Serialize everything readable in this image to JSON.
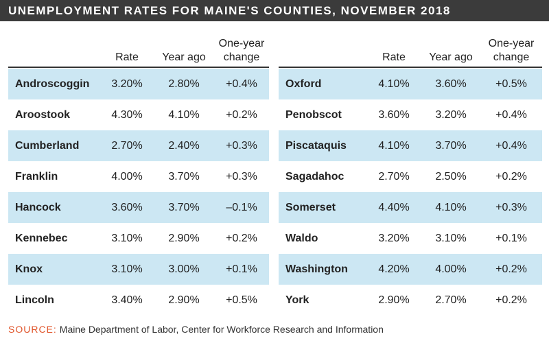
{
  "title": "UNEMPLOYMENT RATES FOR MAINE'S COUNTIES, NOVEMBER 2018",
  "tables": [
    {
      "columns": [
        "Rate",
        "Year ago",
        "One-year change"
      ],
      "rows": [
        [
          "Androscoggin",
          "3.20%",
          "2.80%",
          "+0.4%"
        ],
        [
          "Aroostook",
          "4.30%",
          "4.10%",
          "+0.2%"
        ],
        [
          "Cumberland",
          "2.70%",
          "2.40%",
          "+0.3%"
        ],
        [
          "Franklin",
          "4.00%",
          "3.70%",
          "+0.3%"
        ],
        [
          "Hancock",
          "3.60%",
          "3.70%",
          "–0.1%"
        ],
        [
          "Kennebec",
          "3.10%",
          "2.90%",
          "+0.2%"
        ],
        [
          "Knox",
          "3.10%",
          "3.00%",
          "+0.1%"
        ],
        [
          "Lincoln",
          "3.40%",
          "2.90%",
          "+0.5%"
        ]
      ]
    },
    {
      "columns": [
        "Rate",
        "Year ago",
        "One-year change"
      ],
      "rows": [
        [
          "Oxford",
          "4.10%",
          "3.60%",
          "+0.5%"
        ],
        [
          "Penobscot",
          "3.60%",
          "3.20%",
          "+0.4%"
        ],
        [
          "Piscataquis",
          "4.10%",
          "3.70%",
          "+0.4%"
        ],
        [
          "Sagadahoc",
          "2.70%",
          "2.50%",
          "+0.2%"
        ],
        [
          "Somerset",
          "4.40%",
          "4.10%",
          "+0.3%"
        ],
        [
          "Waldo",
          "3.20%",
          "3.10%",
          "+0.1%"
        ],
        [
          "Washington",
          "4.20%",
          "4.00%",
          "+0.2%"
        ],
        [
          "York",
          "2.90%",
          "2.70%",
          "+0.2%"
        ]
      ]
    }
  ],
  "source": {
    "label": "SOURCE:",
    "text": "Maine Department of Labor, Center for Workforce Research and Information"
  }
}
